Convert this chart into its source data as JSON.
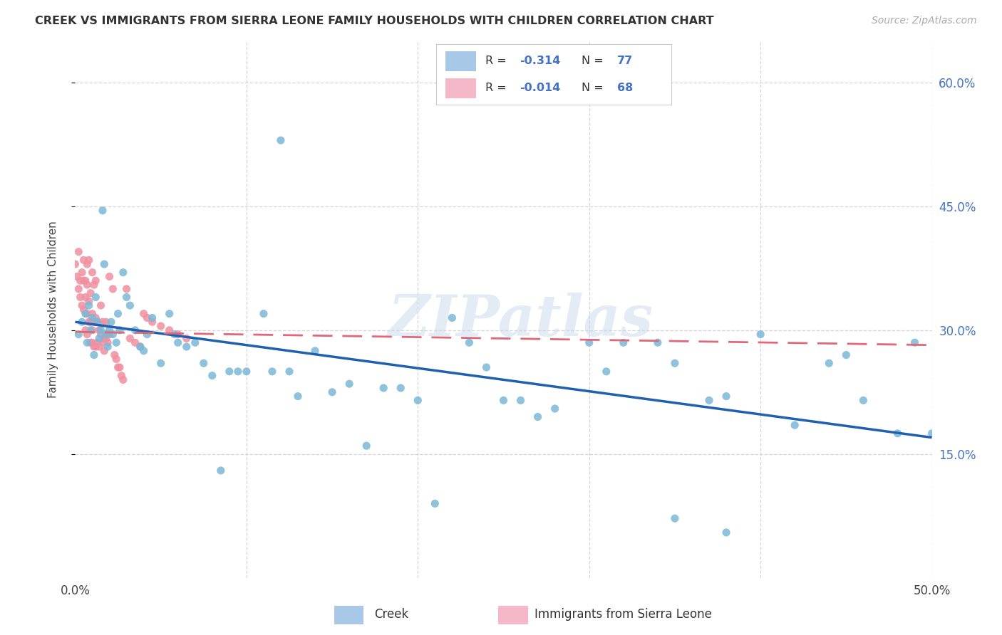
{
  "title": "CREEK VS IMMIGRANTS FROM SIERRA LEONE FAMILY HOUSEHOLDS WITH CHILDREN CORRELATION CHART",
  "source": "Source: ZipAtlas.com",
  "ylabel": "Family Households with Children",
  "xlim": [
    0.0,
    0.5
  ],
  "ylim": [
    0.0,
    0.65
  ],
  "xticks": [
    0.0,
    0.1,
    0.2,
    0.3,
    0.4,
    0.5
  ],
  "xtick_labels": [
    "0.0%",
    "",
    "",
    "",
    "",
    "50.0%"
  ],
  "ytick_labels_right": [
    "60.0%",
    "45.0%",
    "30.0%",
    "15.0%"
  ],
  "ytick_positions_right": [
    0.6,
    0.45,
    0.3,
    0.15
  ],
  "legend_colors": [
    "#a8c8e8",
    "#f4b8c8"
  ],
  "creek_color": "#7ab8d8",
  "sierra_color": "#f090a0",
  "creek_line_color": "#2060b0",
  "sierra_line_color": "#e06878",
  "creek_R": -0.314,
  "creek_N": 77,
  "sierra_R": -0.014,
  "sierra_N": 68,
  "watermark": "ZIPatlas",
  "background_color": "#ffffff",
  "grid_color": "#cccccc",
  "creek_trend_x0": 0.0,
  "creek_trend_x1": 0.5,
  "creek_trend_y0": 0.31,
  "creek_trend_y1": 0.17,
  "sierra_trend_x0": 0.0,
  "sierra_trend_x1": 0.5,
  "sierra_trend_y0": 0.298,
  "sierra_trend_y1": 0.282
}
